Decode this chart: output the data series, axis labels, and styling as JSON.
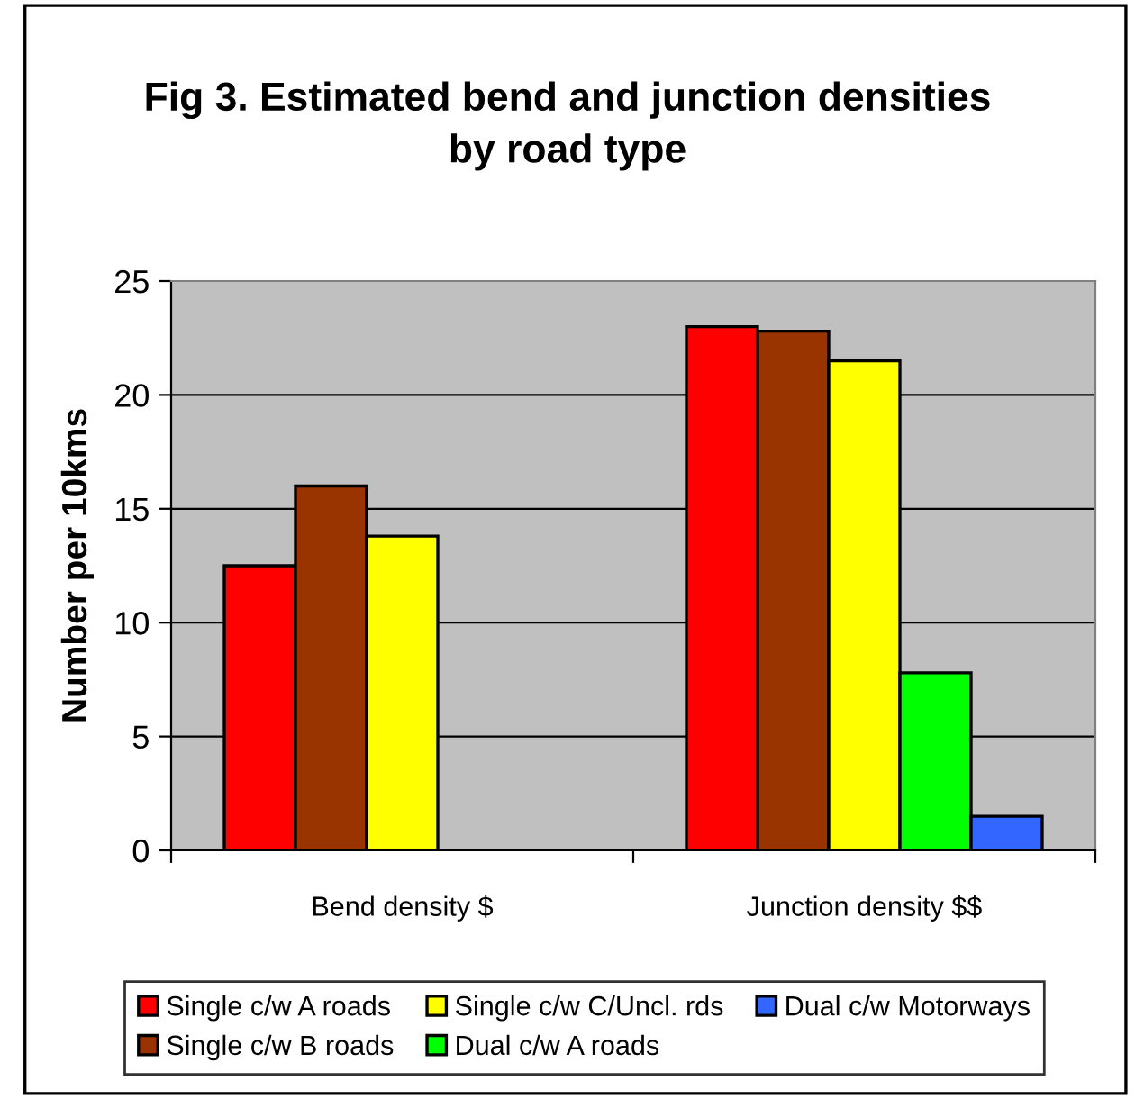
{
  "chart_data": {
    "type": "bar",
    "title": "Fig 3. Estimated bend and junction densities\nby road type",
    "ylabel": "Number per 10kms",
    "categories": [
      "Bend density $",
      "Junction density $$"
    ],
    "series": [
      {
        "name": "Single c/w A roads",
        "color": "#ff0000",
        "values": [
          12.5,
          23.0
        ]
      },
      {
        "name": "Single c/w B roads",
        "color": "#993300",
        "values": [
          16.0,
          22.8
        ]
      },
      {
        "name": "Single c/w C/Uncl. rds",
        "color": "#ffff00",
        "values": [
          13.8,
          21.5
        ]
      },
      {
        "name": "Dual c/w A roads",
        "color": "#00ff00",
        "values": [
          null,
          7.8
        ]
      },
      {
        "name": "Dual c/w Motorways",
        "color": "#3366ff",
        "values": [
          null,
          1.5
        ]
      }
    ],
    "ylim": [
      0,
      25
    ],
    "yticks": [
      0,
      5,
      10,
      15,
      20,
      25
    ],
    "grid": "y",
    "legend": "bottom"
  }
}
